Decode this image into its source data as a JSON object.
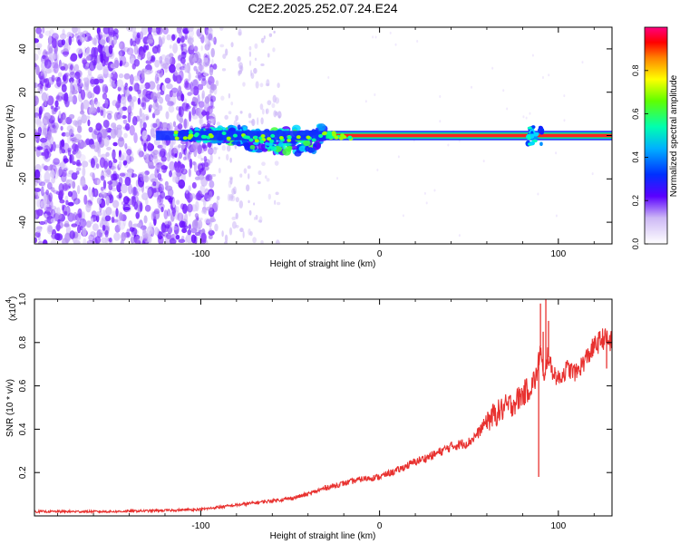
{
  "title": "C2E2.2025.252.07.24.E24",
  "chart_data": [
    {
      "type": "heatmap",
      "name": "spectrogram",
      "xlabel": "Height of straight line (km)",
      "ylabel": "Frequency (Hz)",
      "xlim": [
        -193,
        130
      ],
      "ylim": [
        -50,
        50
      ],
      "x_ticks": [
        -100,
        0,
        100
      ],
      "x_tick_labels": [
        "-100",
        "0",
        "100"
      ],
      "y_ticks": [
        -40,
        -20,
        0,
        20,
        40
      ],
      "y_tick_labels": [
        "-40",
        "-20",
        "0",
        "20",
        "40"
      ],
      "features": {
        "noise_region_km": [
          -193,
          -100
        ],
        "sparse_noise_region_km": [
          -100,
          -55
        ],
        "carrier_start_km": -125,
        "carrier_frequency_hz": 0,
        "spread_region_km": [
          -110,
          -30
        ],
        "strong_carrier_from_km": -20,
        "burst_near_km": 87
      },
      "colorbar": {
        "label": "Normalized spectral amplitude",
        "min": 0,
        "max": 1,
        "ticks": [
          "0.0",
          "0.2",
          "0.4",
          "0.6",
          "0.8"
        ],
        "tick_values": [
          0.0,
          0.2,
          0.4,
          0.6,
          0.8
        ]
      }
    },
    {
      "type": "line",
      "name": "snr",
      "xlabel": "Height of straight line (km)",
      "ylabel": "SNR (10 * v/v)",
      "exponent_label": "(x10",
      "exponent_value": "4",
      "xlim": [
        -193,
        130
      ],
      "ylim": [
        0,
        1.0
      ],
      "x_ticks": [
        -100,
        0,
        100
      ],
      "x_tick_labels": [
        "-100",
        "0",
        "100"
      ],
      "y_ticks": [
        0.2,
        0.4,
        0.6,
        0.8,
        1.0
      ],
      "y_tick_labels": [
        "0.2",
        "0.4",
        "0.6",
        "0.8",
        "1.0"
      ],
      "color": "#e8312f",
      "series": [
        {
          "name": "SNR",
          "x": [
            -193,
            -150,
            -120,
            -100,
            -80,
            -60,
            -50,
            -40,
            -30,
            -20,
            -10,
            0,
            10,
            20,
            30,
            40,
            45,
            50,
            55,
            60,
            65,
            70,
            75,
            80,
            85,
            88,
            90,
            92,
            94,
            96,
            100,
            105,
            110,
            115,
            120,
            125,
            130
          ],
          "values": [
            0.02,
            0.02,
            0.025,
            0.03,
            0.05,
            0.07,
            0.08,
            0.1,
            0.13,
            0.15,
            0.17,
            0.18,
            0.21,
            0.25,
            0.28,
            0.32,
            0.33,
            0.34,
            0.38,
            0.44,
            0.47,
            0.5,
            0.52,
            0.56,
            0.6,
            0.65,
            0.78,
            0.6,
            0.75,
            0.68,
            0.63,
            0.68,
            0.66,
            0.72,
            0.78,
            0.82,
            0.8
          ],
          "spikes": [
            {
              "x": 89,
              "value": 0.18
            },
            {
              "x": 90,
              "value": 0.98
            },
            {
              "x": 91.5,
              "value": 0.85
            },
            {
              "x": 93,
              "value": 1.0
            },
            {
              "x": 94.5,
              "value": 0.9
            },
            {
              "x": 127,
              "value": 0.68
            }
          ]
        }
      ]
    }
  ]
}
